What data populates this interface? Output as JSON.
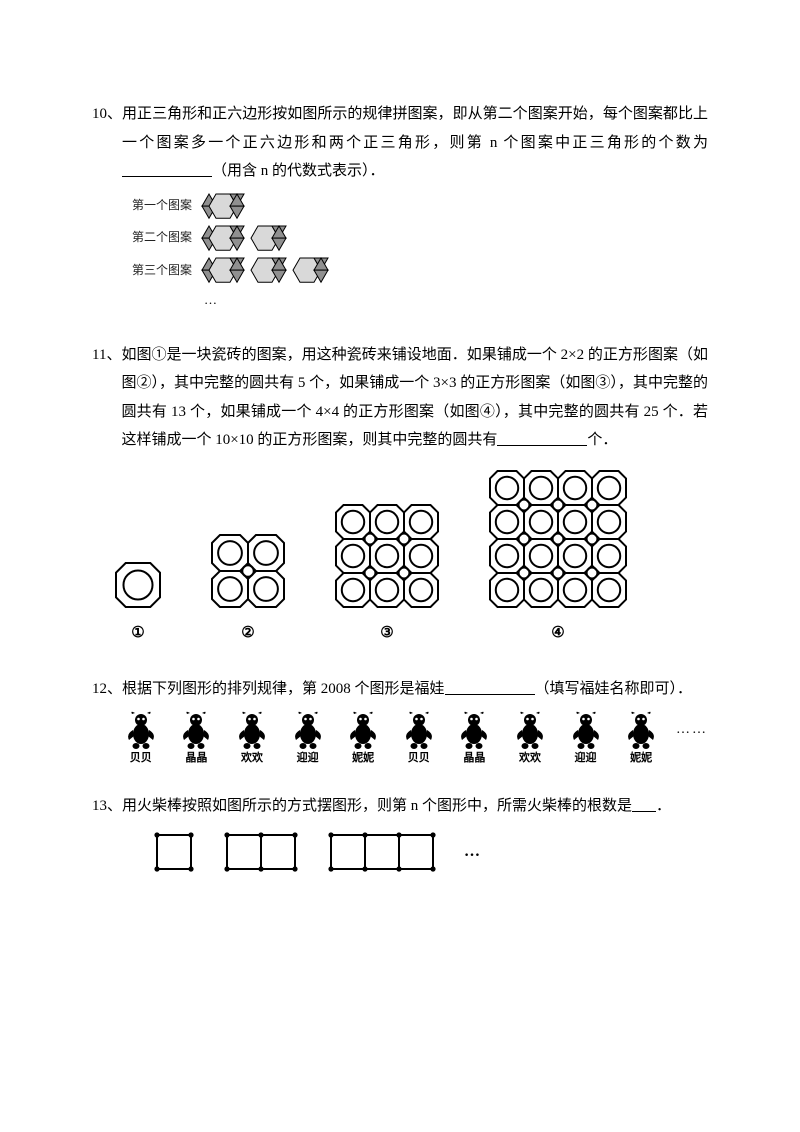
{
  "q10": {
    "num": "10、",
    "text_a": "用正三角形和正六边形按如图所示的规律拼图案，即从第二个图案开始，每个图案都比上一个图案多一个正六边形和两个正三角形，则第 n 个图案中正三角形的个数为",
    "text_b": "（用含 n 的代数式表示）．",
    "blank_w": 90,
    "labels": [
      "第一个图案",
      "第二个图案",
      "第三个图案"
    ],
    "ellipsis": "…",
    "hex_fill": "#d9d9d9",
    "tri_fill": "#909090",
    "stroke": "#000000"
  },
  "q11": {
    "num": "11、",
    "text_a": "如图①是一块瓷砖的图案，用这种瓷砖来铺设地面．如果铺成一个 2×2 的正方形图案（如图②），其中完整的圆共有 5 个，如果铺成一个 3×3 的正方形图案（如图③），其中完整的圆共有 13 个，如果铺成一个 4×4 的正方形图案（如图④），其中完整的圆共有 25 个．若这样铺成一个 10×10 的正方形图案，则其中完整的圆共有",
    "text_b": "个．",
    "blank_w": 90,
    "captions": [
      "①",
      "②",
      "③",
      "④"
    ],
    "stroke": "#000000"
  },
  "q12": {
    "num": "12、",
    "text_a": "根据下列图形的排列规律，第 2008 个图形是福娃",
    "text_b": "（填写福娃名称即可）．",
    "blank_w": 90,
    "names": [
      "贝贝",
      "晶晶",
      "欢欢",
      "迎迎",
      "妮妮",
      "贝贝",
      "晶晶",
      "欢欢",
      "迎迎",
      "妮妮"
    ],
    "dots": "……",
    "fill": "#000000"
  },
  "q13": {
    "num": "13、",
    "text_a": "用火柴棒按照如图所示的方式摆图形，则第 n 个图形中，所需火柴棒的根数是",
    "text_b": "．",
    "dots": "…",
    "stroke": "#000000"
  }
}
